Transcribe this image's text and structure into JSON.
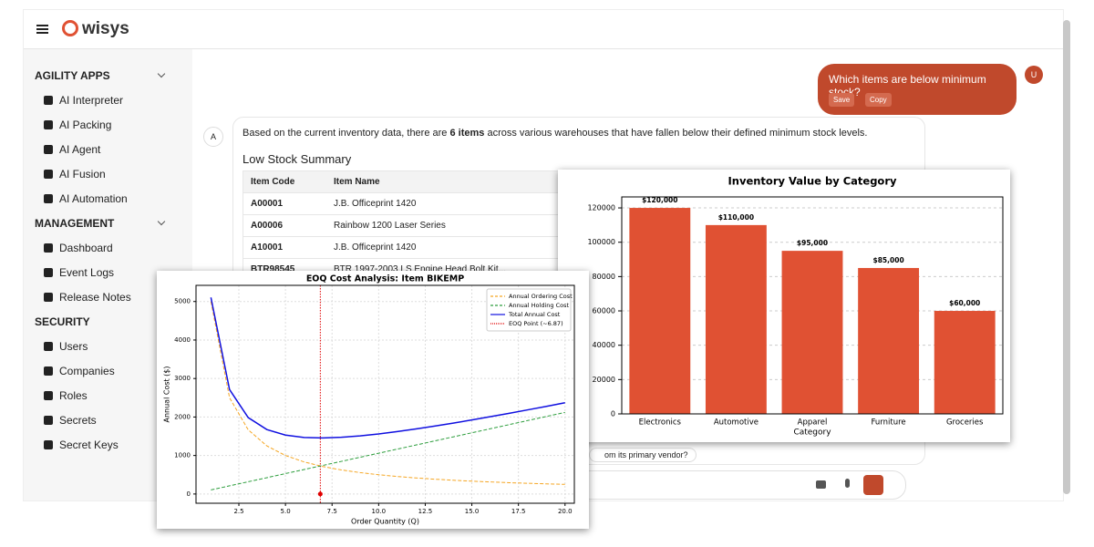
{
  "header": {
    "logo": "wisys"
  },
  "sidebar": {
    "sections": [
      {
        "title": "AGILITY APPS",
        "items": [
          "AI Interpreter",
          "AI Packing",
          "AI Agent",
          "AI Fusion",
          "AI Automation"
        ]
      },
      {
        "title": "MANAGEMENT",
        "items": [
          "Dashboard",
          "Event Logs",
          "Release Notes"
        ]
      },
      {
        "title": "SECURITY",
        "items": [
          "Users",
          "Companies",
          "Roles",
          "Secrets",
          "Secret Keys"
        ]
      }
    ]
  },
  "chat": {
    "user_avatar": "U",
    "user_message": "Which items are below minimum stock?",
    "actions": [
      "Save",
      "Copy"
    ],
    "assistant_avatar": "A",
    "intro": [
      "Based on the current inventory data, there are ",
      "6 items",
      " across various warehouses that have fallen below their defined minimum stock levels."
    ],
    "summary_title": "Low Stock Summary",
    "table": {
      "headers": [
        "Item Code",
        "Item Name"
      ],
      "rows": [
        [
          "A00001",
          "J.B. Officeprint 1420"
        ],
        [
          "A00006",
          "Rainbow 1200 Laser Series"
        ],
        [
          "A10001",
          "J.B. Officeprint 1420"
        ],
        [
          "BTR98545",
          "BTR 1997-2003 LS Engine Head Bolt Kit..."
        ]
      ]
    },
    "suggestion": "om its primary vendor?"
  },
  "chart_data": [
    {
      "type": "bar",
      "title": "Inventory Value by Category",
      "xlabel": "Category",
      "categories": [
        "Electronics",
        "Automotive",
        "Apparel",
        "Furniture",
        "Groceries"
      ],
      "values": [
        120000,
        110000,
        95000,
        85000,
        60000
      ],
      "value_labels": [
        "$120,000",
        "$110,000",
        "$95,000",
        "$85,000",
        "$60,000"
      ],
      "color": "#e05133",
      "ylim": [
        0,
        126400
      ],
      "yticks": [
        0,
        20000,
        40000,
        60000,
        80000,
        100000,
        120000
      ],
      "grid": true
    },
    {
      "type": "line",
      "title": "EOQ Cost Analysis: Item BIKEMP",
      "xlabel": "Order Quantity (Q)",
      "ylabel": "Annual Cost ($)",
      "x": [
        1,
        2,
        3,
        4,
        5,
        6,
        7,
        8,
        9,
        10,
        11,
        12,
        13,
        14,
        15,
        16,
        17,
        18,
        19,
        20
      ],
      "series": [
        {
          "name": "Annual Ordering Cost",
          "color": "#f5a623",
          "dash": "dashed",
          "values": [
            5000,
            2500,
            1667,
            1250,
            1000,
            833,
            714,
            625,
            556,
            500,
            455,
            417,
            385,
            357,
            333,
            313,
            294,
            278,
            263,
            250
          ]
        },
        {
          "name": "Annual Holding Cost",
          "color": "#2e9e3e",
          "dash": "dashed",
          "values": [
            106,
            212,
            318,
            424,
            530,
            636,
            742,
            848,
            954,
            1060,
            1166,
            1272,
            1378,
            1484,
            1590,
            1696,
            1802,
            1908,
            2014,
            2120
          ]
        },
        {
          "name": "Total Annual Cost",
          "color": "#1010e0",
          "dash": "solid",
          "values": [
            5106,
            2712,
            1985,
            1674,
            1530,
            1469,
            1456,
            1473,
            1510,
            1560,
            1621,
            1689,
            1763,
            1841,
            1923,
            2009,
            2096,
            2186,
            2277,
            2370
          ]
        }
      ],
      "eoq": {
        "name": "EOQ Point (~6.87)",
        "x": 6.87,
        "y": 0,
        "color": "#e00000"
      },
      "xlim": [
        0.2,
        20.5
      ],
      "xticks": [
        2.5,
        {
          "value": 5,
          "label": "5.0"
        },
        7.5,
        {
          "value": 10,
          "label": "10.0"
        },
        12.5,
        {
          "value": 15,
          "label": "15.0"
        },
        17.5,
        {
          "value": 20,
          "label": "20.0"
        }
      ],
      "ylim": [
        -240,
        5420
      ],
      "yticks": [
        0,
        1000,
        2000,
        3000,
        4000,
        5000
      ],
      "grid": true,
      "legend": "upper right"
    }
  ]
}
